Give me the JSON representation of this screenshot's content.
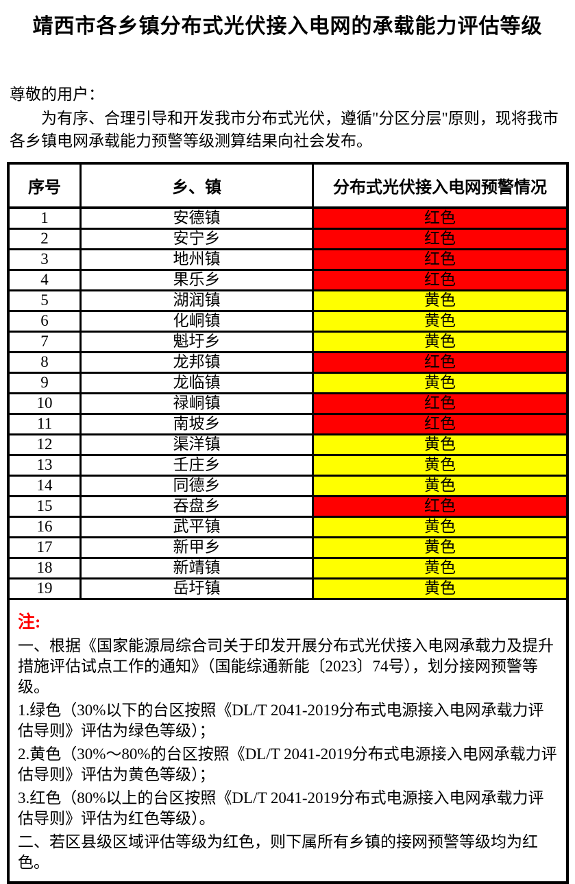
{
  "page": {
    "title": "靖西市各乡镇分布式光伏接入电网的承载能力评估等级",
    "greeting": "尊敬的用户：",
    "intro": "为有序、合理引导和开发我市分布式光伏，遵循\"分区分层\"原则，现将我市各乡镇电网承载能力预警等级测算结果向社会发布。"
  },
  "colors": {
    "red": "#FF0000",
    "yellow": "#FFFF00"
  },
  "table": {
    "headers": [
      "序号",
      "乡、镇",
      "分布式光伏接入电网预警情况"
    ],
    "rows": [
      {
        "no": "1",
        "town": "安德镇",
        "status": "红色",
        "level": "red"
      },
      {
        "no": "2",
        "town": "安宁乡",
        "status": "红色",
        "level": "red"
      },
      {
        "no": "3",
        "town": "地州镇",
        "status": "红色",
        "level": "red"
      },
      {
        "no": "4",
        "town": "果乐乡",
        "status": "红色",
        "level": "red"
      },
      {
        "no": "5",
        "town": "湖润镇",
        "status": "黄色",
        "level": "yellow"
      },
      {
        "no": "6",
        "town": "化峒镇",
        "status": "黄色",
        "level": "yellow"
      },
      {
        "no": "7",
        "town": "魁圩乡",
        "status": "黄色",
        "level": "yellow"
      },
      {
        "no": "8",
        "town": "龙邦镇",
        "status": "红色",
        "level": "red"
      },
      {
        "no": "9",
        "town": "龙临镇",
        "status": "黄色",
        "level": "yellow"
      },
      {
        "no": "10",
        "town": "禄峒镇",
        "status": "红色",
        "level": "red"
      },
      {
        "no": "11",
        "town": "南坡乡",
        "status": "红色",
        "level": "red"
      },
      {
        "no": "12",
        "town": "渠洋镇",
        "status": "黄色",
        "level": "yellow"
      },
      {
        "no": "13",
        "town": "壬庄乡",
        "status": "黄色",
        "level": "yellow"
      },
      {
        "no": "14",
        "town": "同德乡",
        "status": "黄色",
        "level": "yellow"
      },
      {
        "no": "15",
        "town": "吞盘乡",
        "status": "红色",
        "level": "red"
      },
      {
        "no": "16",
        "town": "武平镇",
        "status": "黄色",
        "level": "yellow"
      },
      {
        "no": "17",
        "town": "新甲乡",
        "status": "黄色",
        "level": "yellow"
      },
      {
        "no": "18",
        "town": "新靖镇",
        "status": "黄色",
        "level": "yellow"
      },
      {
        "no": "19",
        "town": "岳圩镇",
        "status": "黄色",
        "level": "yellow"
      }
    ]
  },
  "notes": {
    "label": "注:",
    "items": [
      "一、根据《国家能源局综合司关于印发开展分布式光伏接入电网承载力及提升措施评估试点工作的通知》（国能综通新能〔2023〕74号），划分接网预警等级。",
      "1.绿色（30%以下的台区按照《DL/T 2041-2019分布式电源接入电网承载力评估导则》评估为绿色等级）；",
      "2.黄色（30%～80%的台区按照《DL/T 2041-2019分布式电源接入电网承载力评估导则》评估为黄色等级）；",
      "3.红色（80%以上的台区按照《DL/T 2041-2019分布式电源接入电网承载力评估导则》评估为红色等级）。",
      "二、若区县级区域评估等级为红色，则下属所有乡镇的接网预警等级均为红色。"
    ]
  }
}
